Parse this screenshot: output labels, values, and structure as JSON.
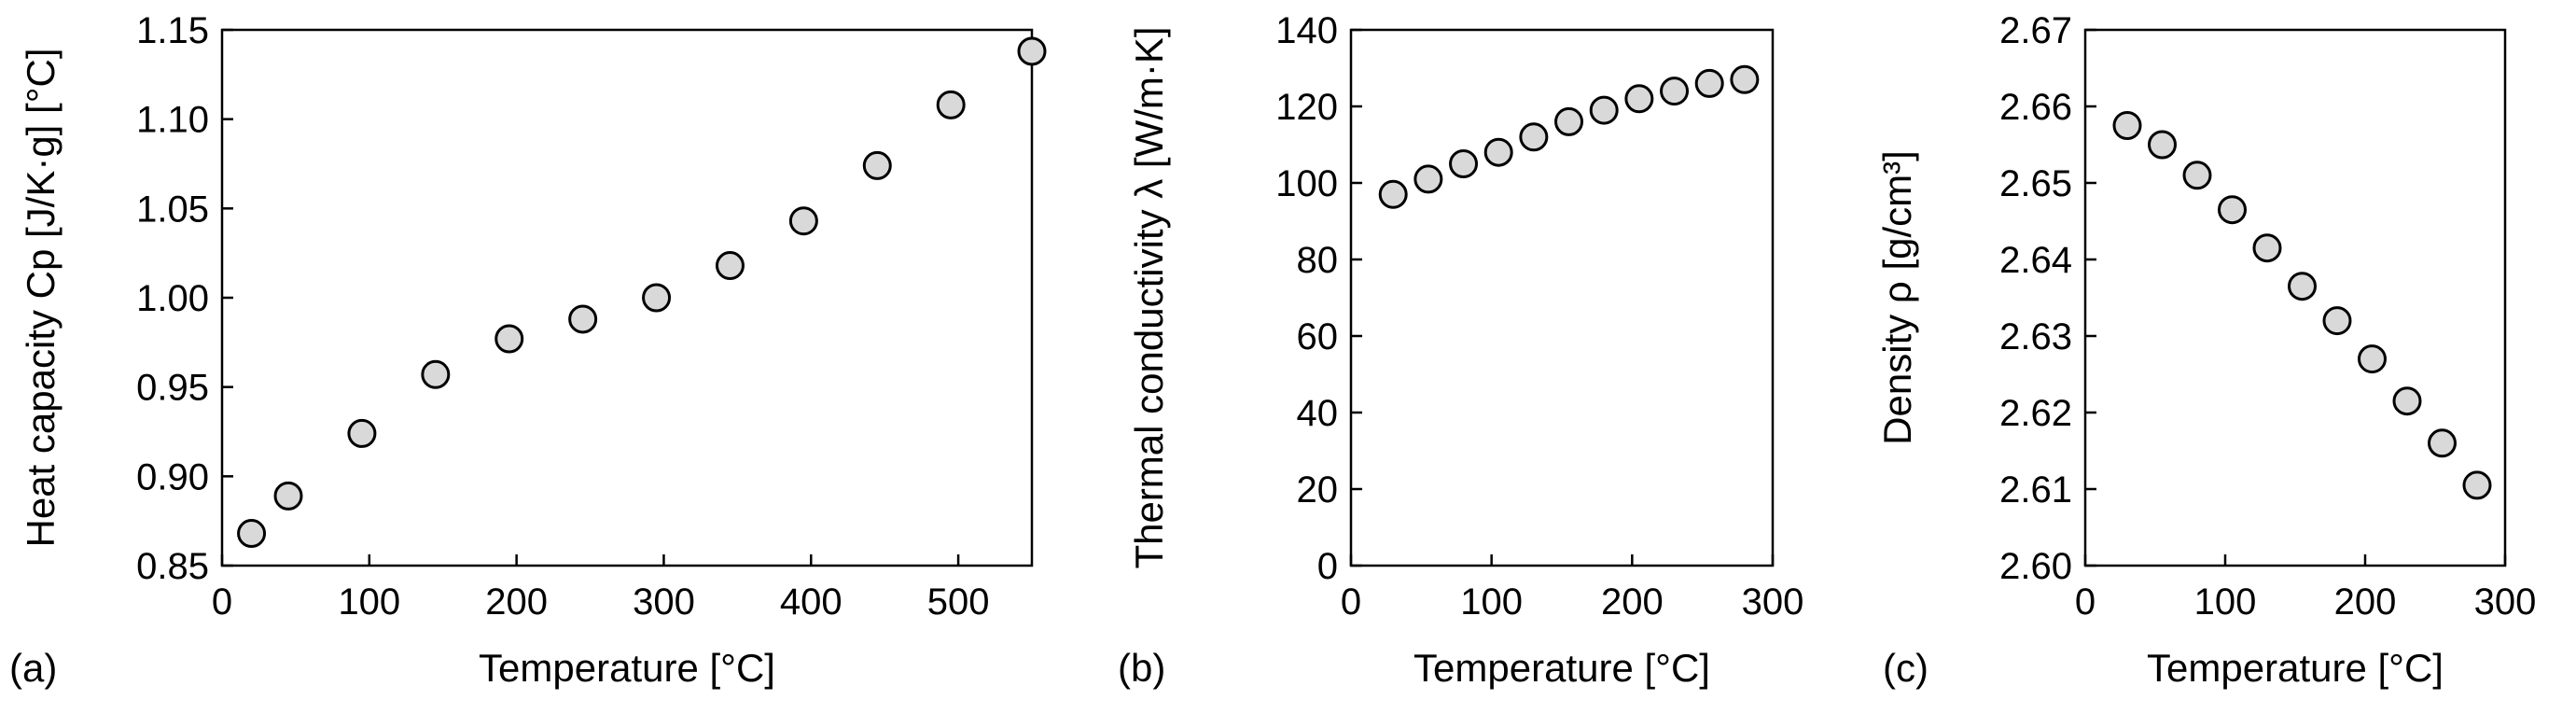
{
  "chart_data": [
    {
      "type": "scatter",
      "panel_label": "(a)",
      "xlabel": "Temperature [°C]",
      "ylabel": "Heat capacity Cp [J/K·g] [°C]",
      "xlim": [
        0,
        550
      ],
      "ylim": [
        0.85,
        1.15
      ],
      "xticks": [
        "0",
        "100",
        "200",
        "300",
        "400",
        "500"
      ],
      "yticks": [
        "0.85",
        "0.90",
        "0.95",
        "1.00",
        "1.05",
        "1.10",
        "1.15"
      ],
      "x": [
        20,
        45,
        95,
        145,
        195,
        245,
        295,
        345,
        395,
        445,
        495,
        550
      ],
      "y": [
        0.868,
        0.889,
        0.924,
        0.957,
        0.977,
        0.988,
        1.0,
        1.018,
        1.043,
        1.074,
        1.108,
        1.138
      ]
    },
    {
      "type": "scatter",
      "panel_label": "(b)",
      "xlabel": "Temperature [°C]",
      "ylabel": "Thermal conductivity λ [W/m·K]",
      "xlim": [
        0,
        300
      ],
      "ylim": [
        0,
        140
      ],
      "xticks": [
        "0",
        "100",
        "200",
        "300"
      ],
      "yticks": [
        "0",
        "20",
        "40",
        "60",
        "80",
        "100",
        "120",
        "140"
      ],
      "x": [
        30,
        55,
        80,
        105,
        130,
        155,
        180,
        205,
        230,
        255,
        280
      ],
      "y": [
        97,
        101,
        105,
        108,
        112,
        116,
        119,
        122,
        124,
        126,
        127
      ]
    },
    {
      "type": "scatter",
      "panel_label": "(c)",
      "xlabel": "Temperature [°C]",
      "ylabel": "Density ρ [g/cm³]",
      "xlim": [
        0,
        300
      ],
      "ylim": [
        2.6,
        2.67
      ],
      "xticks": [
        "0",
        "100",
        "200",
        "300"
      ],
      "yticks": [
        "2.60",
        "2.61",
        "2.62",
        "2.63",
        "2.64",
        "2.65",
        "2.66",
        "2.67"
      ],
      "x": [
        30,
        55,
        80,
        105,
        130,
        155,
        180,
        205,
        230,
        255,
        280
      ],
      "y": [
        2.6575,
        2.655,
        2.651,
        2.6465,
        2.6415,
        2.6365,
        2.632,
        2.627,
        2.6215,
        2.616,
        2.6105
      ]
    }
  ]
}
